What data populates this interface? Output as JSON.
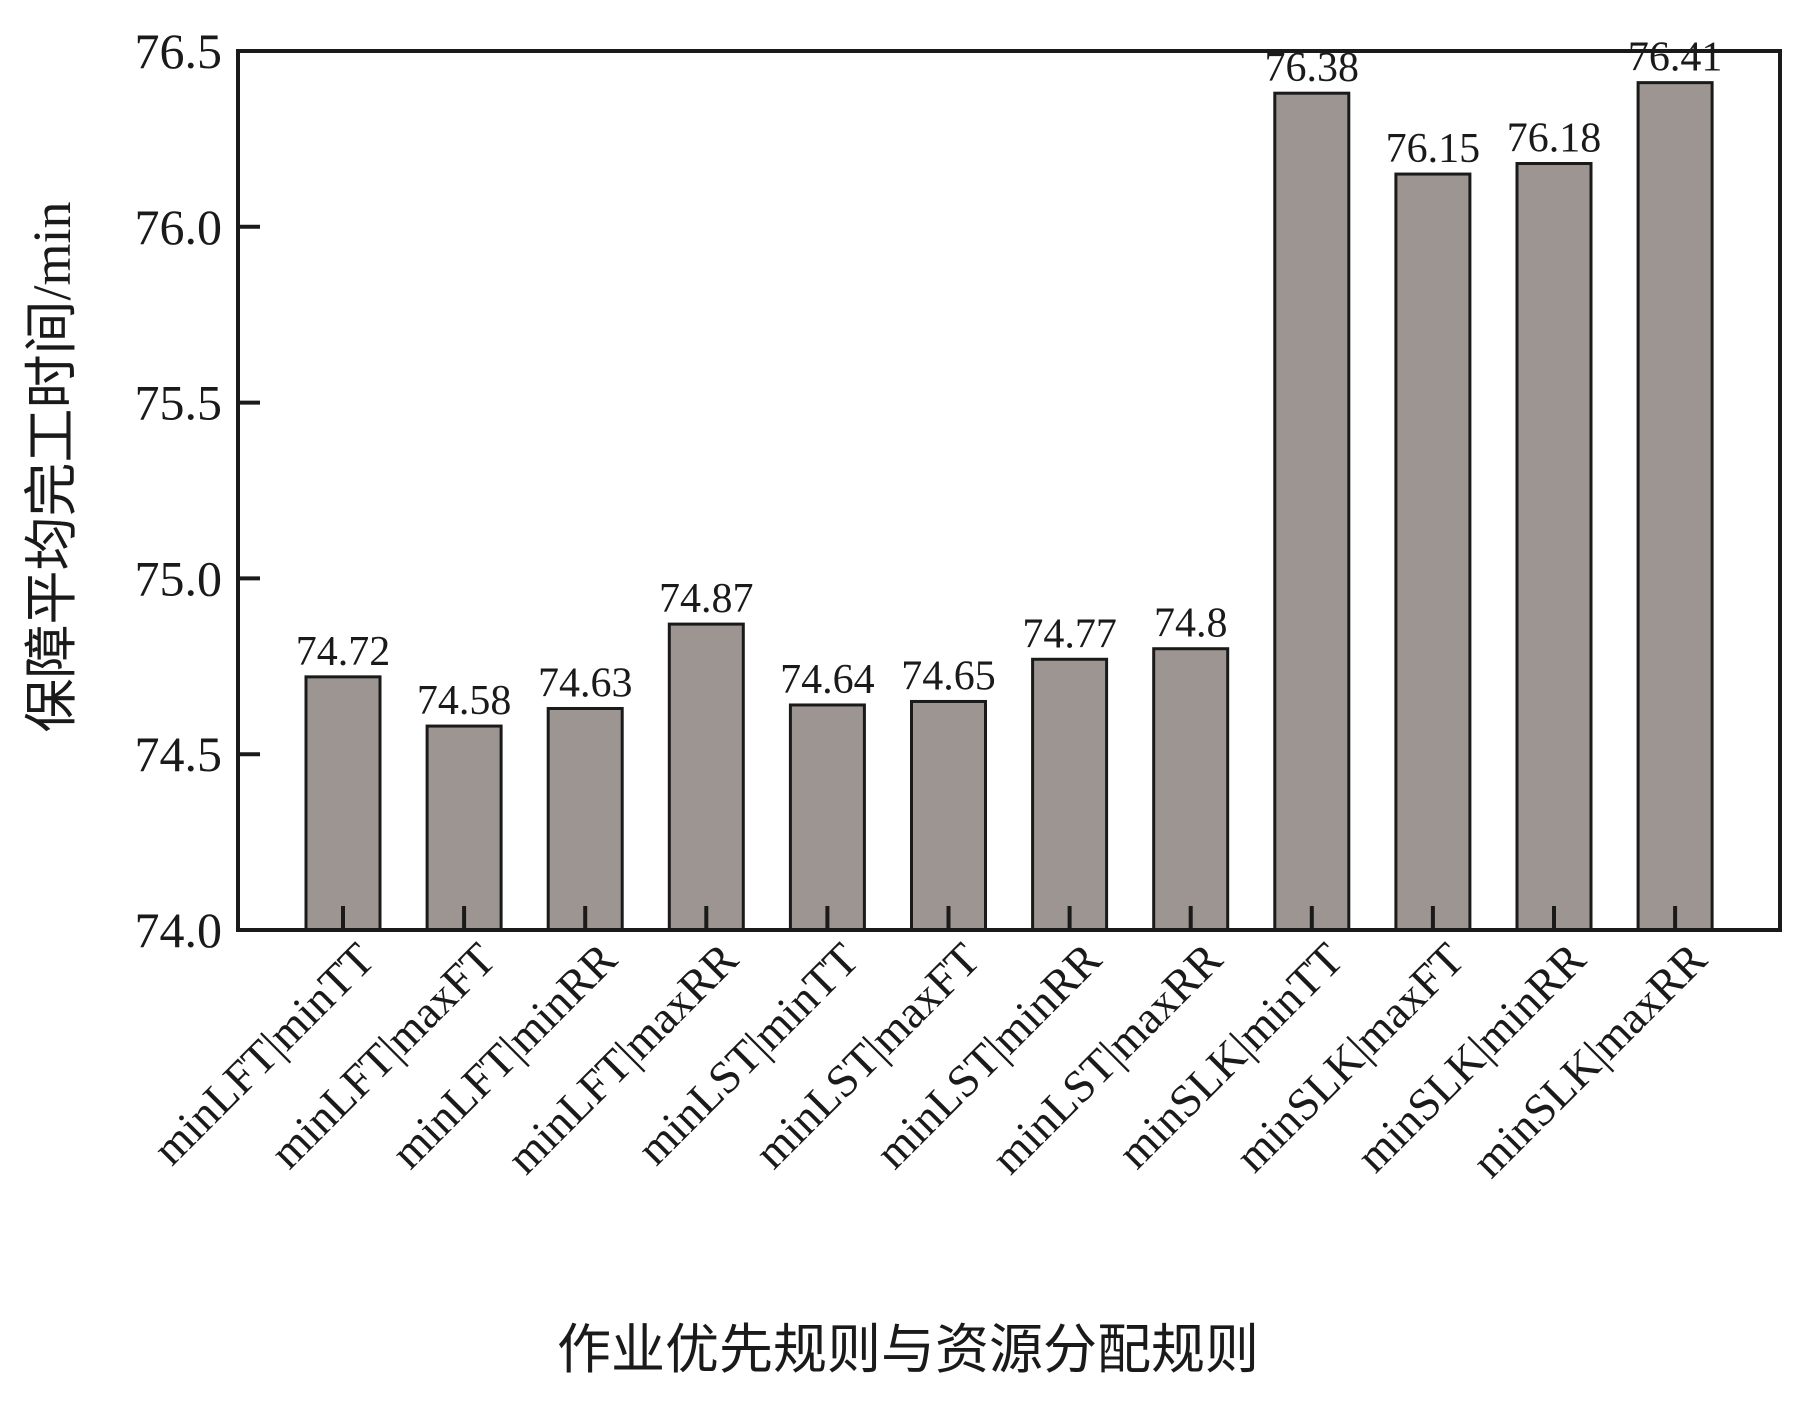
{
  "chart_data": {
    "type": "bar",
    "title": "",
    "xlabel": "作业优先规则与资源分配规则",
    "ylabel": "保障平均完工时间/min",
    "categories": [
      "minLFT|minTT",
      "minLFT|maxFT",
      "minLFT|minRR",
      "minLFT|maxRR",
      "minLST|minTT",
      "minLST|maxFT",
      "minLST|minRR",
      "minLST|maxRR",
      "minSLK|minTT",
      "minSLK|maxFT",
      "minSLK|minRR",
      "minSLK|maxRR"
    ],
    "values": [
      74.72,
      74.58,
      74.63,
      74.87,
      74.64,
      74.65,
      74.77,
      74.8,
      76.38,
      76.15,
      76.18,
      76.41
    ],
    "data_labels": [
      "74.72",
      "74.58",
      "74.63",
      "74.87",
      "74.64",
      "74.65",
      "74.77",
      "74.8",
      "76.38",
      "76.15",
      "76.18",
      "76.41"
    ],
    "ylim": [
      74.0,
      76.5
    ],
    "yticks": [
      74.0,
      74.5,
      75.0,
      75.5,
      76.0,
      76.5
    ],
    "ytick_labels": [
      "74.0",
      "74.5",
      "75.0",
      "75.5",
      "76.0",
      "76.5"
    ],
    "grid": false,
    "legend": "none",
    "colors": {
      "bar_fill": "#9c9591",
      "bar_stroke": "#1a1a1a",
      "axis": "#1a1a1a"
    }
  }
}
